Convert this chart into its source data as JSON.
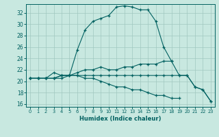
{
  "xlabel": "Humidex (Indice chaleur)",
  "xlim": [
    -0.5,
    23.5
  ],
  "ylim": [
    15.5,
    33.5
  ],
  "xticks": [
    0,
    1,
    2,
    3,
    4,
    5,
    6,
    7,
    8,
    9,
    10,
    11,
    12,
    13,
    14,
    15,
    16,
    17,
    18,
    19,
    20,
    21,
    22,
    23
  ],
  "yticks": [
    16,
    18,
    20,
    22,
    24,
    26,
    28,
    30,
    32
  ],
  "bg_color": "#c8e8e0",
  "grid_color": "#a0c8c0",
  "line_color": "#006060",
  "line1_x": [
    0,
    1,
    2,
    3,
    4,
    5,
    6,
    7,
    8,
    9,
    10,
    11,
    12,
    13,
    14,
    15,
    16,
    17,
    18
  ],
  "line1_y": [
    20.5,
    20.5,
    20.5,
    21.5,
    21.0,
    21.0,
    25.5,
    29.0,
    30.5,
    31.0,
    31.5,
    33.0,
    33.2,
    33.0,
    32.5,
    32.5,
    30.5,
    26.0,
    23.5
  ],
  "line2_x": [
    0,
    1,
    2,
    3,
    4,
    5,
    6,
    7,
    8,
    9,
    10,
    11,
    12,
    13,
    14,
    15,
    16,
    17,
    18,
    19,
    20,
    21,
    22,
    23
  ],
  "line2_y": [
    20.5,
    20.5,
    20.5,
    20.5,
    21.0,
    21.0,
    21.5,
    22.0,
    22.0,
    22.5,
    22.0,
    22.0,
    22.5,
    22.5,
    23.0,
    23.0,
    23.0,
    23.5,
    23.5,
    21.0,
    21.0,
    19.0,
    18.5,
    16.5
  ],
  "line3_x": [
    0,
    1,
    2,
    3,
    4,
    5,
    6,
    7,
    8,
    9,
    10,
    11,
    12,
    13,
    14,
    15,
    16,
    17,
    18,
    19,
    20,
    21,
    22,
    23
  ],
  "line3_y": [
    20.5,
    20.5,
    20.5,
    20.5,
    21.0,
    21.0,
    21.0,
    21.0,
    21.0,
    21.0,
    21.0,
    21.0,
    21.0,
    21.0,
    21.0,
    21.0,
    21.0,
    21.0,
    21.0,
    21.0,
    21.0,
    19.0,
    18.5,
    16.5
  ],
  "line4_x": [
    0,
    1,
    2,
    3,
    4,
    5,
    6,
    7,
    8,
    9,
    10,
    11,
    12,
    13,
    14,
    15,
    16,
    17,
    18,
    19
  ],
  "line4_y": [
    20.5,
    20.5,
    20.5,
    20.5,
    20.5,
    21.0,
    21.0,
    20.5,
    20.5,
    20.0,
    19.5,
    19.0,
    19.0,
    18.5,
    18.5,
    18.0,
    17.5,
    17.5,
    17.0,
    17.0
  ]
}
